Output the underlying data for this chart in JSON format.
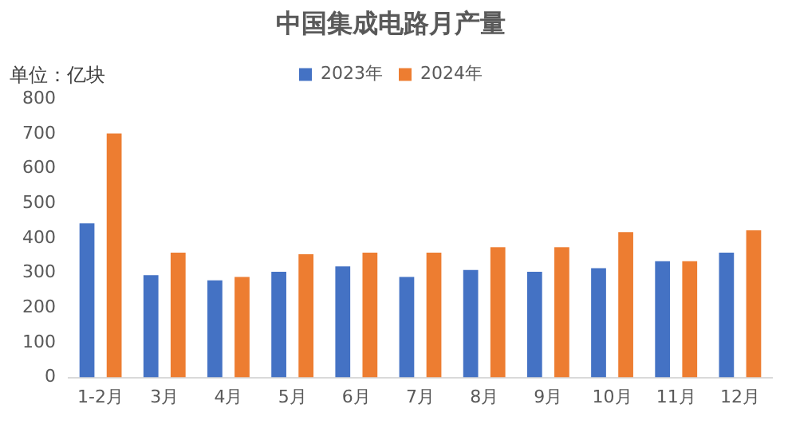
{
  "chart_data": {
    "type": "bar",
    "title": "中国集成电路月产量",
    "ylabel": "单位：亿块",
    "categories": [
      "1-2月",
      "3月",
      "4月",
      "5月",
      "6月",
      "7月",
      "8月",
      "9月",
      "10月",
      "11月",
      "12月"
    ],
    "series": [
      {
        "name": "2023年",
        "color": "#4472c4",
        "values": [
          443,
          294,
          279,
          304,
          319,
          289,
          309,
          304,
          314,
          334,
          359
        ]
      },
      {
        "name": "2024年",
        "color": "#ed7d31",
        "values": [
          701,
          359,
          289,
          354,
          359,
          359,
          374,
          374,
          418,
          334,
          423
        ]
      }
    ],
    "ylim": [
      0,
      800
    ],
    "yticks": [
      0,
      100,
      200,
      300,
      400,
      500,
      600,
      700,
      800
    ],
    "grid": false,
    "legend": "top"
  }
}
